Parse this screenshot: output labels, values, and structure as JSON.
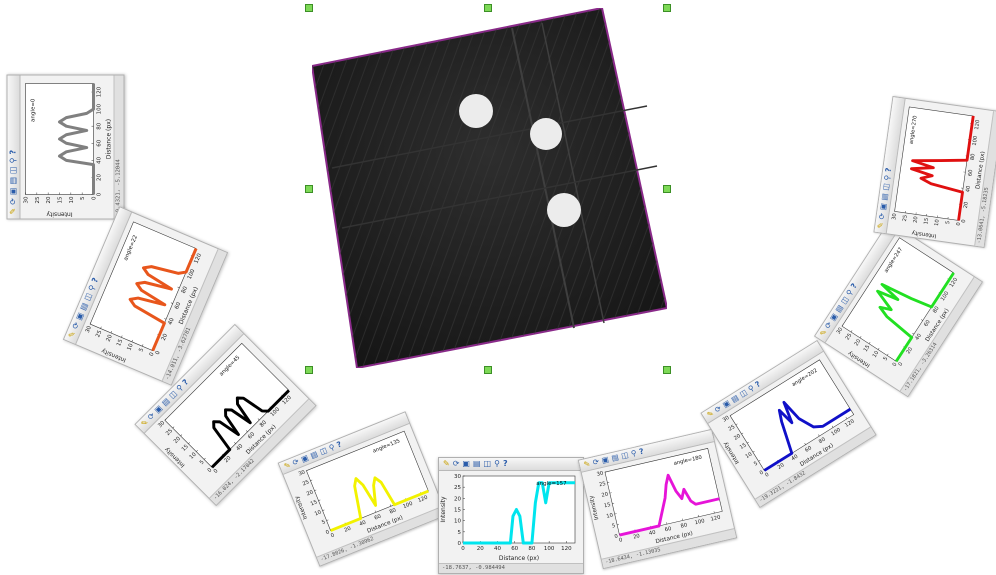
{
  "toolbar_icons": [
    "pencil-icon",
    "refresh-icon",
    "save-icon",
    "export-icon",
    "fit-icon",
    "zoom-icon",
    "help-icon"
  ],
  "ct_view": {
    "border_color": "#8a2a8a",
    "background": "#1c1c1c",
    "blob_color": "#ececec"
  },
  "panels": [
    {
      "id": "gray",
      "color": "#808080",
      "rotation_deg": -90,
      "status": "-9.4321, -5.12044",
      "xlabel": "Distance (px)",
      "ylabel": "Intensity",
      "angle_label": "angle=0"
    },
    {
      "id": "orange",
      "color": "#e8561c",
      "rotation_deg": -67,
      "status": "-14.011, -3.62781",
      "xlabel": "Distance (px)",
      "ylabel": "Intensity",
      "angle_label": "angle=22"
    },
    {
      "id": "black",
      "color": "#000000",
      "rotation_deg": -45,
      "status": "-16.024, -2.17042",
      "xlabel": "Distance (px)",
      "ylabel": "Intensity",
      "angle_label": "angle=45"
    },
    {
      "id": "yellow",
      "color": "#f2f200",
      "rotation_deg": -22,
      "status": "-17.8026, -1.30962",
      "xlabel": "Distance (px)",
      "ylabel": "Intensity",
      "angle_label": "angle=135"
    },
    {
      "id": "cyan",
      "color": "#00e5ee",
      "rotation_deg": 0,
      "status": "-18.7637, -0.984494",
      "xlabel": "Distance (px)",
      "ylabel": "Intensity",
      "angle_label": "angle=157"
    },
    {
      "id": "magenta",
      "color": "#e614d8",
      "rotation_deg": -13,
      "status": "-18.6434, -1.13035",
      "xlabel": "Distance (px)",
      "ylabel": "Intensity",
      "angle_label": "angle=180"
    },
    {
      "id": "blue",
      "color": "#1010c8",
      "rotation_deg": -32,
      "status": "-19.3221, -1.8432",
      "xlabel": "Distance (px)",
      "ylabel": "Intensity",
      "angle_label": "angle=202"
    },
    {
      "id": "green",
      "color": "#22e022",
      "rotation_deg": -57,
      "status": "-17.1821, -3.26314",
      "xlabel": "Distance (px)",
      "ylabel": "Intensity",
      "angle_label": "angle=247"
    },
    {
      "id": "red",
      "color": "#e01010",
      "rotation_deg": -82,
      "status": "-13.0641, -5.18235",
      "xlabel": "Distance (px)",
      "ylabel": "Intensity",
      "angle_label": "angle=270"
    }
  ],
  "axes": {
    "xticks": [
      "0",
      "20",
      "40",
      "60",
      "80",
      "100",
      "120"
    ],
    "yticks": [
      "0",
      "5",
      "10",
      "15",
      "20",
      "25",
      "30"
    ],
    "xlim": [
      0,
      130
    ],
    "ylim": [
      0,
      30
    ]
  },
  "chart_data": [
    {
      "type": "line",
      "series": [
        {
          "values": [
            [
              0,
              0
            ],
            [
              35,
              0
            ],
            [
              40,
              12
            ],
            [
              45,
              15
            ],
            [
              50,
              12
            ],
            [
              55,
              3
            ],
            [
              60,
              12
            ],
            [
              65,
              15
            ],
            [
              70,
              12
            ],
            [
              75,
              3
            ],
            [
              80,
              12
            ],
            [
              85,
              15
            ],
            [
              90,
              12
            ],
            [
              95,
              3
            ],
            [
              100,
              0
            ],
            [
              130,
              0
            ]
          ]
        }
      ]
    },
    {
      "type": "line",
      "series": [
        {
          "values": [
            [
              0,
              0
            ],
            [
              35,
              0
            ],
            [
              40,
              15
            ],
            [
              45,
              18
            ],
            [
              50,
              15
            ],
            [
              55,
              3
            ],
            [
              60,
              15
            ],
            [
              65,
              18
            ],
            [
              70,
              15
            ],
            [
              75,
              3
            ],
            [
              80,
              15
            ],
            [
              85,
              18
            ],
            [
              90,
              15
            ],
            [
              95,
              3
            ],
            [
              100,
              0
            ],
            [
              130,
              0
            ]
          ]
        }
      ]
    },
    {
      "type": "line",
      "series": [
        {
          "values": [
            [
              0,
              0
            ],
            [
              30,
              0
            ],
            [
              35,
              12
            ],
            [
              40,
              14
            ],
            [
              45,
              12
            ],
            [
              50,
              2
            ],
            [
              55,
              12
            ],
            [
              60,
              14
            ],
            [
              65,
              12
            ],
            [
              70,
              2
            ],
            [
              75,
              12
            ],
            [
              80,
              14
            ],
            [
              85,
              12
            ],
            [
              90,
              2
            ],
            [
              95,
              0
            ],
            [
              130,
              0
            ]
          ]
        }
      ]
    },
    {
      "type": "line",
      "series": [
        {
          "values": [
            [
              0,
              0
            ],
            [
              40,
              0
            ],
            [
              48,
              15
            ],
            [
              53,
              18
            ],
            [
              58,
              14
            ],
            [
              63,
              3
            ],
            [
              70,
              12
            ],
            [
              75,
              15
            ],
            [
              80,
              12
            ],
            [
              85,
              0
            ],
            [
              130,
              0
            ]
          ]
        }
      ]
    },
    {
      "type": "line",
      "series": [
        {
          "values": [
            [
              0,
              0
            ],
            [
              55,
              0
            ],
            [
              58,
              12
            ],
            [
              62,
              15
            ],
            [
              66,
              12
            ],
            [
              70,
              0
            ],
            [
              80,
              0
            ],
            [
              84,
              18
            ],
            [
              88,
              27
            ],
            [
              92,
              27
            ],
            [
              96,
              18
            ],
            [
              100,
              27
            ],
            [
              130,
              27
            ]
          ]
        }
      ]
    },
    {
      "type": "line",
      "series": [
        {
          "values": [
            [
              0,
              0
            ],
            [
              50,
              0
            ],
            [
              65,
              12
            ],
            [
              70,
              18
            ],
            [
              75,
              22
            ],
            [
              80,
              14
            ],
            [
              85,
              10
            ],
            [
              90,
              14
            ],
            [
              95,
              8
            ],
            [
              100,
              6
            ],
            [
              130,
              6
            ]
          ]
        }
      ]
    },
    {
      "type": "line",
      "series": [
        {
          "values": [
            [
              0,
              0
            ],
            [
              40,
              0
            ],
            [
              50,
              15
            ],
            [
              55,
              20
            ],
            [
              60,
              12
            ],
            [
              65,
              22
            ],
            [
              70,
              12
            ],
            [
              80,
              5
            ],
            [
              90,
              3
            ],
            [
              130,
              3
            ]
          ]
        }
      ]
    },
    {
      "type": "line",
      "series": [
        {
          "values": [
            [
              0,
              0
            ],
            [
              35,
              0
            ],
            [
              40,
              15
            ],
            [
              45,
              20
            ],
            [
              50,
              15
            ],
            [
              60,
              25
            ],
            [
              65,
              15
            ],
            [
              70,
              25
            ],
            [
              75,
              10
            ],
            [
              80,
              0
            ],
            [
              130,
              0
            ]
          ]
        }
      ]
    },
    {
      "type": "line",
      "series": [
        {
          "values": [
            [
              0,
              0
            ],
            [
              35,
              0
            ],
            [
              40,
              15
            ],
            [
              45,
              20
            ],
            [
              50,
              15
            ],
            [
              55,
              25
            ],
            [
              60,
              15
            ],
            [
              65,
              25
            ],
            [
              70,
              12
            ],
            [
              75,
              0
            ],
            [
              130,
              0
            ]
          ]
        }
      ]
    }
  ]
}
